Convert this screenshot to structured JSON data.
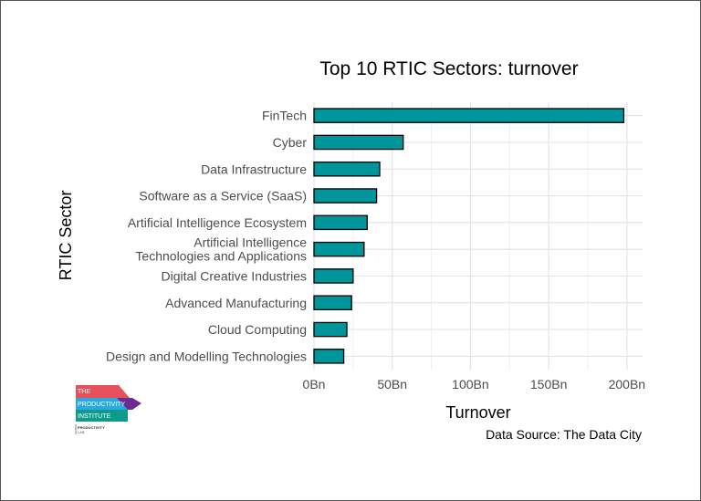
{
  "chart_data": {
    "type": "bar",
    "orientation": "horizontal",
    "title": "Top 10 RTIC Sectors: turnover",
    "xlabel": "Turnover",
    "ylabel": "RTIC Sector",
    "categories": [
      [
        "FinTech"
      ],
      [
        "Cyber"
      ],
      [
        "Data Infrastructure"
      ],
      [
        "Software as a Service (SaaS)"
      ],
      [
        "Artificial Intelligence Ecosystem"
      ],
      [
        "Artificial Intelligence",
        "Technologies and Applications"
      ],
      [
        "Digital Creative Industries"
      ],
      [
        "Advanced Manufacturing"
      ],
      [
        "Cloud Computing"
      ],
      [
        "Design and Modelling Technologies"
      ]
    ],
    "values": [
      198,
      57,
      42,
      40,
      34,
      32,
      25,
      24,
      21,
      19
    ],
    "xlim": [
      0,
      210
    ],
    "xticks": [
      0,
      50,
      100,
      150,
      200
    ],
    "xtick_labels": [
      "0Bn",
      "50Bn",
      "100Bn",
      "150Bn",
      "200Bn"
    ],
    "units": "Bn",
    "grid": true,
    "bar_color": "#00959A",
    "bar_edge_color": "#000000",
    "caption": "Data Source: The Data City"
  },
  "logo": {
    "line1": "THE",
    "line2": "PRODUCTIVITY",
    "line3": "INSTITUTE",
    "sub1": "PRODUCTIVITY",
    "sub2": "LAB",
    "colors": [
      "#E8505B",
      "#29A9E1",
      "#6A2C91",
      "#0D9C8C"
    ]
  }
}
